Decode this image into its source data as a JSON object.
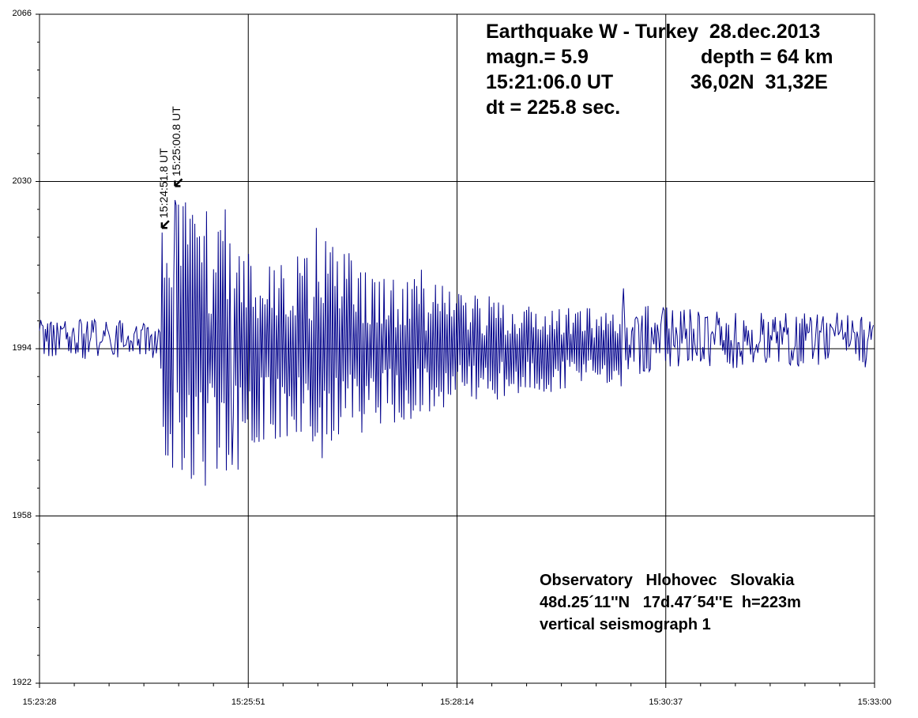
{
  "chart_data": {
    "type": "line",
    "title": "",
    "xlabel": "",
    "ylabel": "",
    "ylim": [
      1922,
      2066
    ],
    "x_range": [
      "15:23:28",
      "15:33:00"
    ],
    "y_ticks": [
      "2066",
      "2030",
      "1994",
      "1958",
      "1922"
    ],
    "x_ticks": [
      "15:23:28",
      "15:25:51",
      "15:28:14",
      "15:30:37",
      "15:33:00"
    ],
    "grid": true,
    "baseline": 1994,
    "series": [
      {
        "color": "#00008b",
        "sample_spacing_sec": 0.8,
        "envelope_note_values_in_counts": true,
        "amplitude_profile": [
          {
            "t": "15:23:28",
            "amp": 4.5
          },
          {
            "t": "15:24:51",
            "amp": 4
          },
          {
            "t": "15:24:52",
            "amp": 26
          },
          {
            "t": "15:25:00",
            "amp": 36
          },
          {
            "t": "15:25:20",
            "amp": 30
          },
          {
            "t": "15:25:40",
            "amp": 27
          },
          {
            "t": "15:26:10",
            "amp": 20
          },
          {
            "t": "15:26:40",
            "amp": 24
          },
          {
            "t": "15:27:20",
            "amp": 18
          },
          {
            "t": "15:28:00",
            "amp": 14
          },
          {
            "t": "15:28:40",
            "amp": 11
          },
          {
            "t": "15:29:40",
            "amp": 9
          },
          {
            "t": "15:30:40",
            "amp": 7
          },
          {
            "t": "15:31:40",
            "amp": 6
          },
          {
            "t": "15:33:00",
            "amp": 6
          }
        ],
        "peaks": [
          {
            "t": "15:24:52",
            "v": 2019
          },
          {
            "t": "15:24:56",
            "v": 1971
          },
          {
            "t": "15:25:01",
            "v": 2026
          },
          {
            "t": "15:25:12",
            "v": 1966
          },
          {
            "t": "15:25:35",
            "v": 2024
          },
          {
            "t": "15:25:40",
            "v": 1969
          },
          {
            "t": "15:26:38",
            "v": 2020
          },
          {
            "t": "15:27:02",
            "v": 2013
          },
          {
            "t": "15:27:50",
            "v": 2011
          },
          {
            "t": "15:30:08",
            "v": 2007
          }
        ]
      }
    ],
    "annotations": [
      {
        "label": "15:24:51.8 UT",
        "t": "15:24:51.8",
        "v": 2020
      },
      {
        "label": "15:25:00.8 UT",
        "t": "15:25:00.8",
        "v": 2029
      }
    ]
  },
  "info": {
    "line1": "Earthquake W - Turkey  28.dec.2013",
    "line2a": "magn.= 5.9",
    "line2b": "depth = 64 km",
    "line3a": "15:21:06.0 UT",
    "line3b": "36,02N  31,32E",
    "line4": "dt = 225.8 sec."
  },
  "observatory": {
    "line1": "Observatory   Hlohovec   Slovakia",
    "line2": "48d.25´11''N   17d.47´54''E  h=223m",
    "line3": "vertical seismograph 1"
  },
  "colors": {
    "trace": "#00008b",
    "grid": "#000000",
    "background": "#ffffff"
  }
}
